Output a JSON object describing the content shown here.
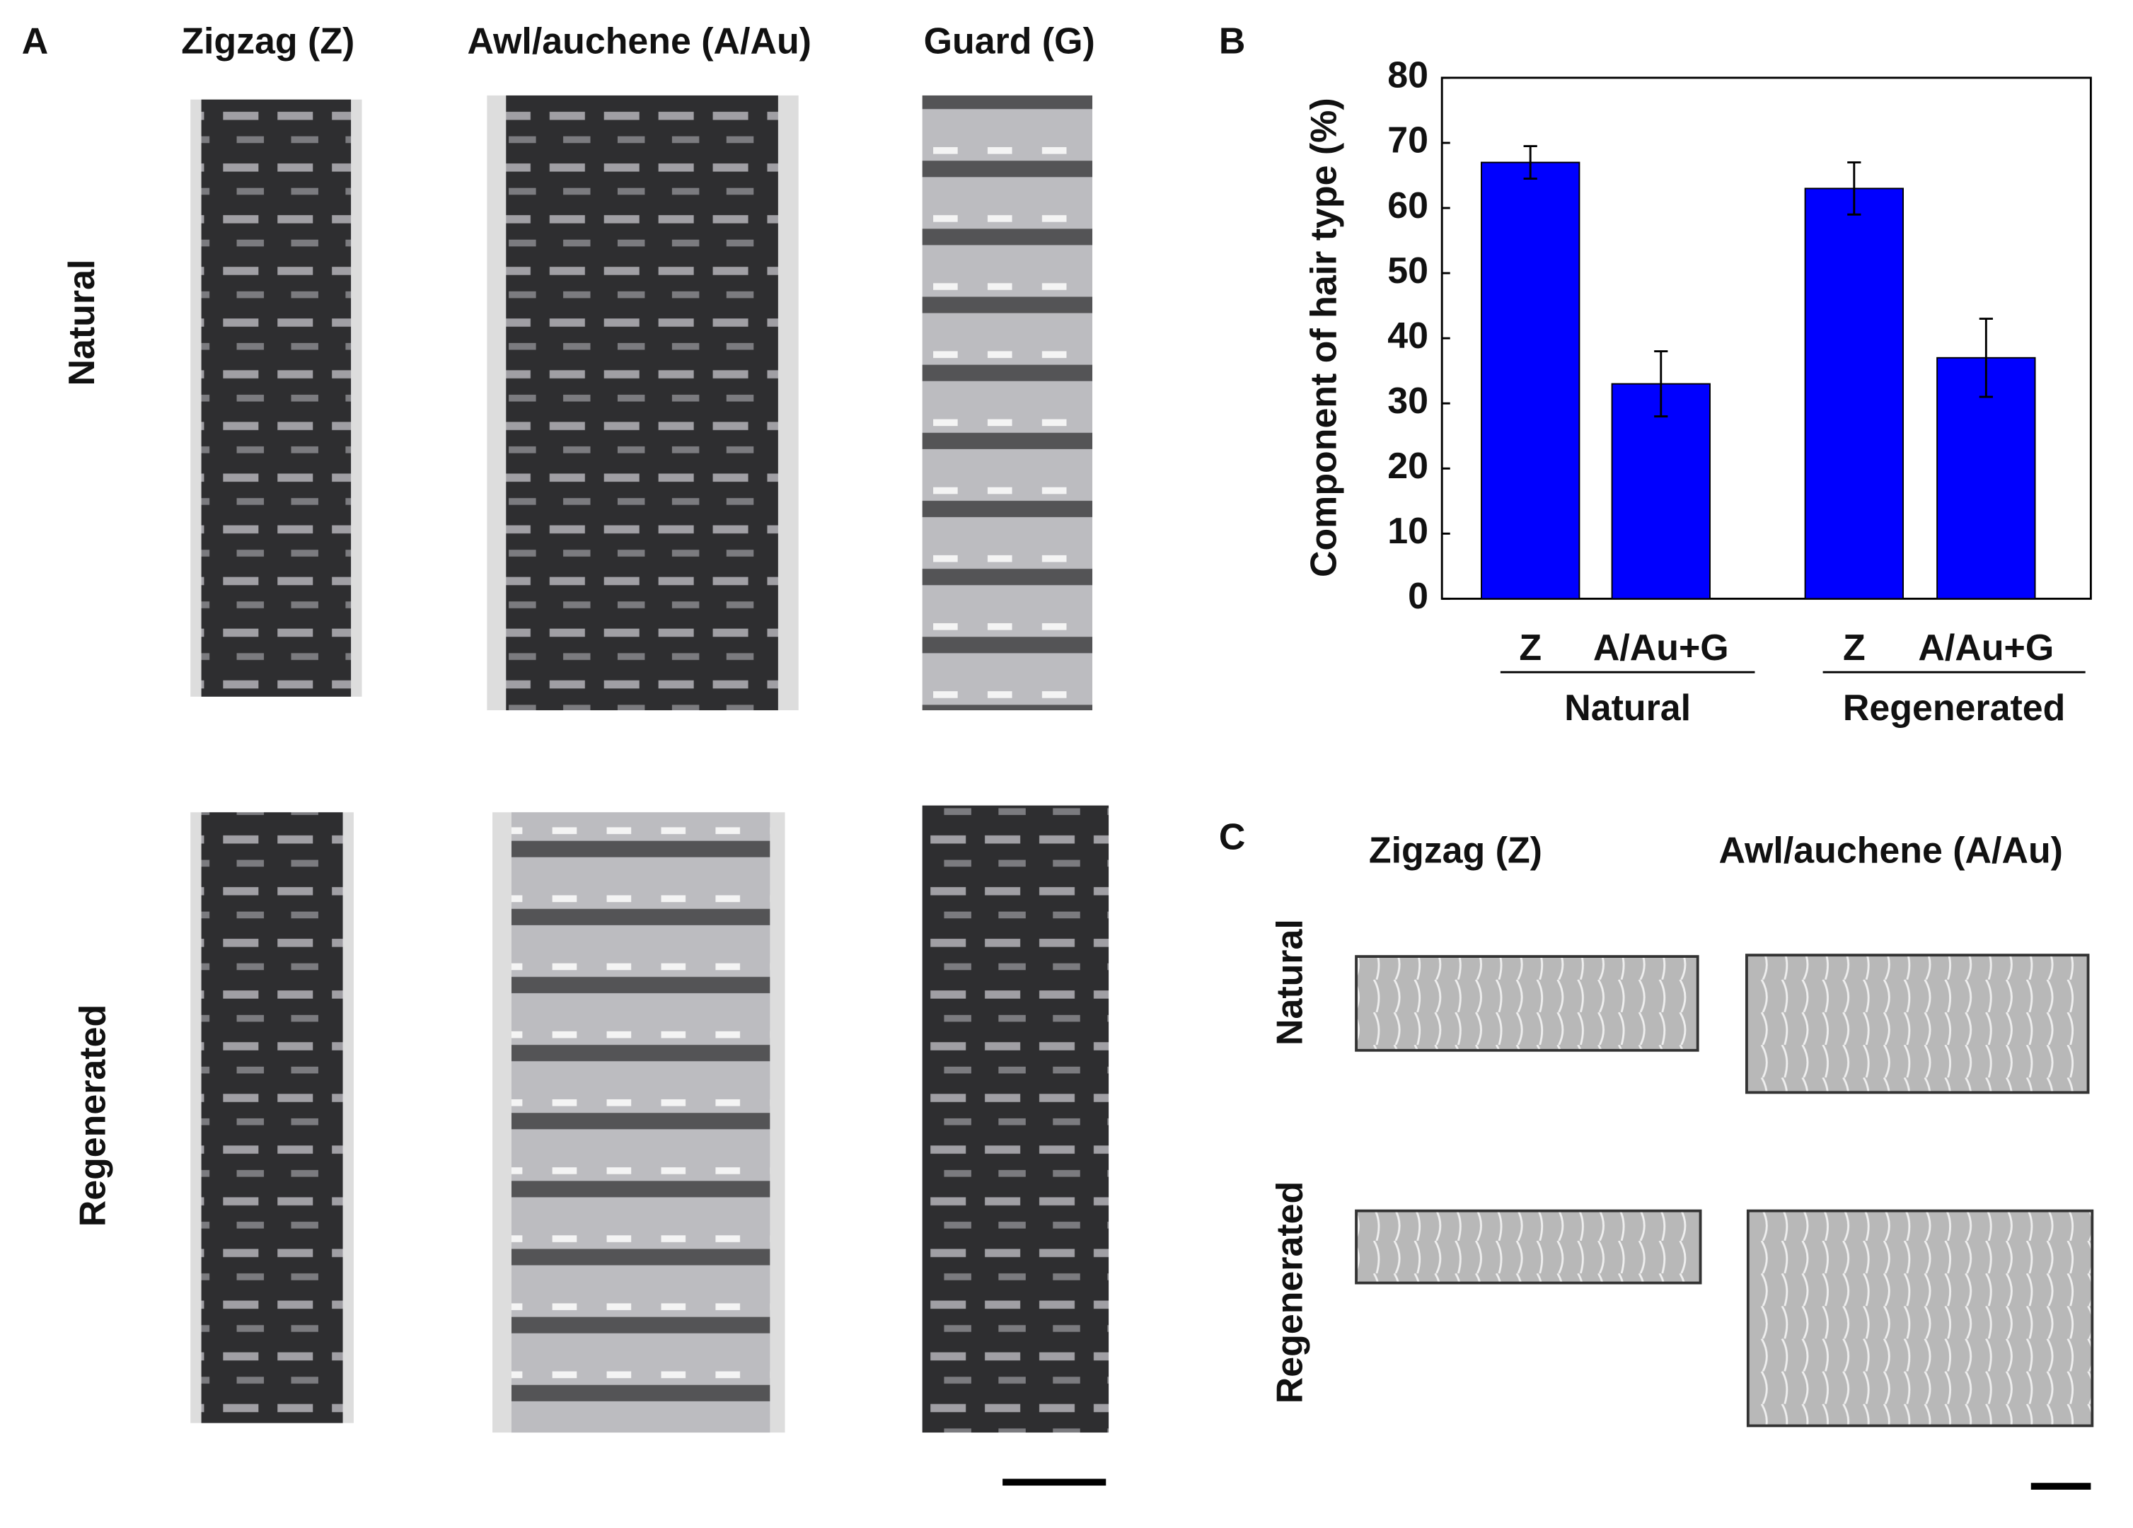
{
  "panel_a": {
    "label": "A",
    "columns": [
      "Zigzag (Z)",
      "Awl/auchene (A/Au)",
      "Guard (G)"
    ],
    "rows": [
      "Natural",
      "Regenerated"
    ]
  },
  "panel_c": {
    "label": "C",
    "columns": [
      "Zigzag (Z)",
      "Awl/auchene (A/Au)"
    ],
    "rows": [
      "Natural",
      "Regenerated"
    ]
  },
  "chart_data": {
    "type": "bar",
    "panel_label": "B",
    "y_label": "Component of hair type (%)",
    "categories": [
      "Z",
      "A/Au+G",
      "Z",
      "A/Au+G"
    ],
    "groups": [
      "Natural",
      "Regenerated"
    ],
    "values": [
      67,
      33,
      63,
      37
    ],
    "errors": [
      2.5,
      5,
      4,
      6
    ],
    "color": "#0000ff",
    "ylim": [
      0,
      80
    ],
    "yticks": [
      0,
      10,
      20,
      30,
      40,
      50,
      60,
      70,
      80
    ]
  }
}
